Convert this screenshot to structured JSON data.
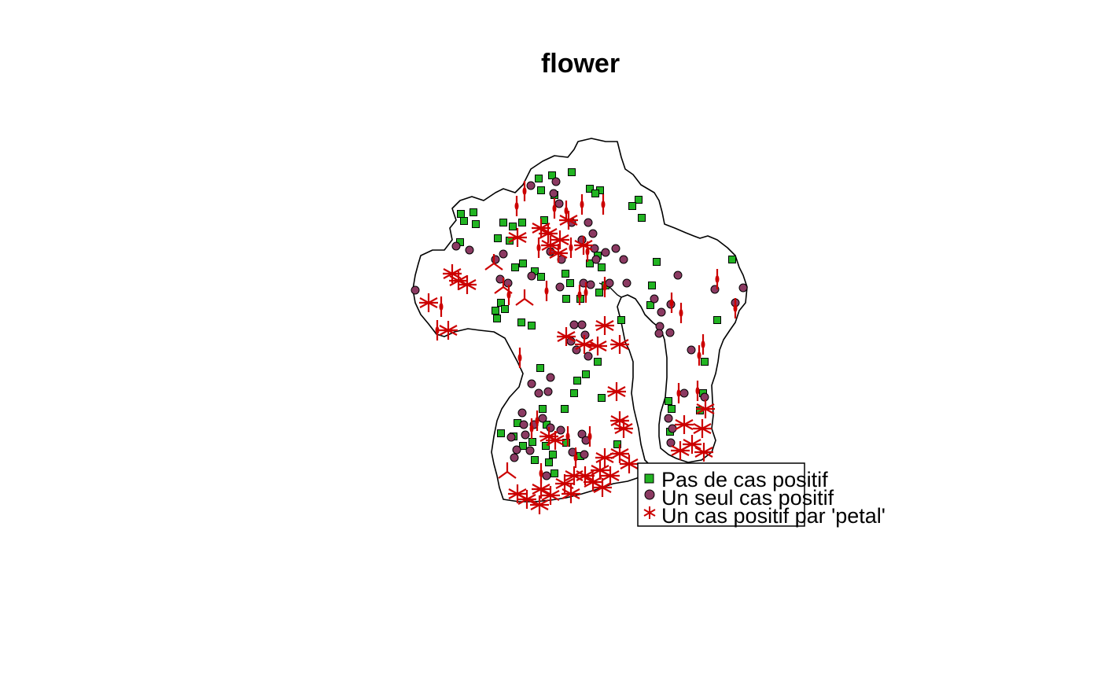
{
  "title": "flower",
  "legend": {
    "items": [
      {
        "label": "Pas de cas positif",
        "symbol": "square",
        "color": "#22b422"
      },
      {
        "label": "Un seul cas positif",
        "symbol": "circle",
        "color": "#8b3a62"
      },
      {
        "label": "Un cas positif par 'petal'",
        "symbol": "star",
        "color": "#cc0000"
      }
    ]
  },
  "colors": {
    "negative": "#22b422",
    "single": "#8b3a62",
    "multiple": "#cc0000",
    "outline": "#000000"
  }
}
